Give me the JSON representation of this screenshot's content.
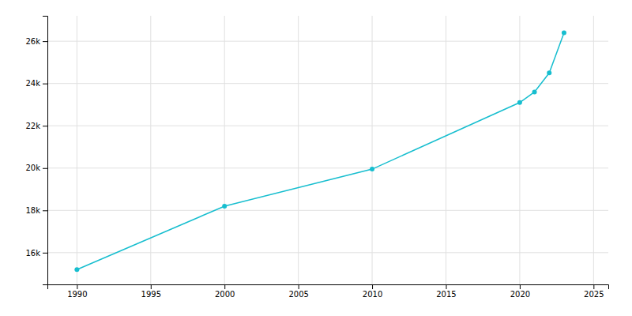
{
  "chart_data": {
    "type": "line",
    "x": [
      1990,
      2000,
      2010,
      2020,
      2021,
      2022,
      2023
    ],
    "values": [
      15200,
      18200,
      19950,
      23100,
      23600,
      24500,
      26400
    ],
    "color": "#17BECF",
    "marker": "circle",
    "xlim": [
      1988,
      2026
    ],
    "ylim": [
      14500,
      27200
    ],
    "xticks": [
      1990,
      1995,
      2000,
      2005,
      2010,
      2015,
      2020,
      2025
    ],
    "yticks": [
      {
        "value": 16000,
        "label": "16k"
      },
      {
        "value": 18000,
        "label": "18k"
      },
      {
        "value": 20000,
        "label": "20k"
      },
      {
        "value": 22000,
        "label": "22k"
      },
      {
        "value": 24000,
        "label": "24k"
      },
      {
        "value": 26000,
        "label": "26k"
      }
    ],
    "grid": true
  }
}
